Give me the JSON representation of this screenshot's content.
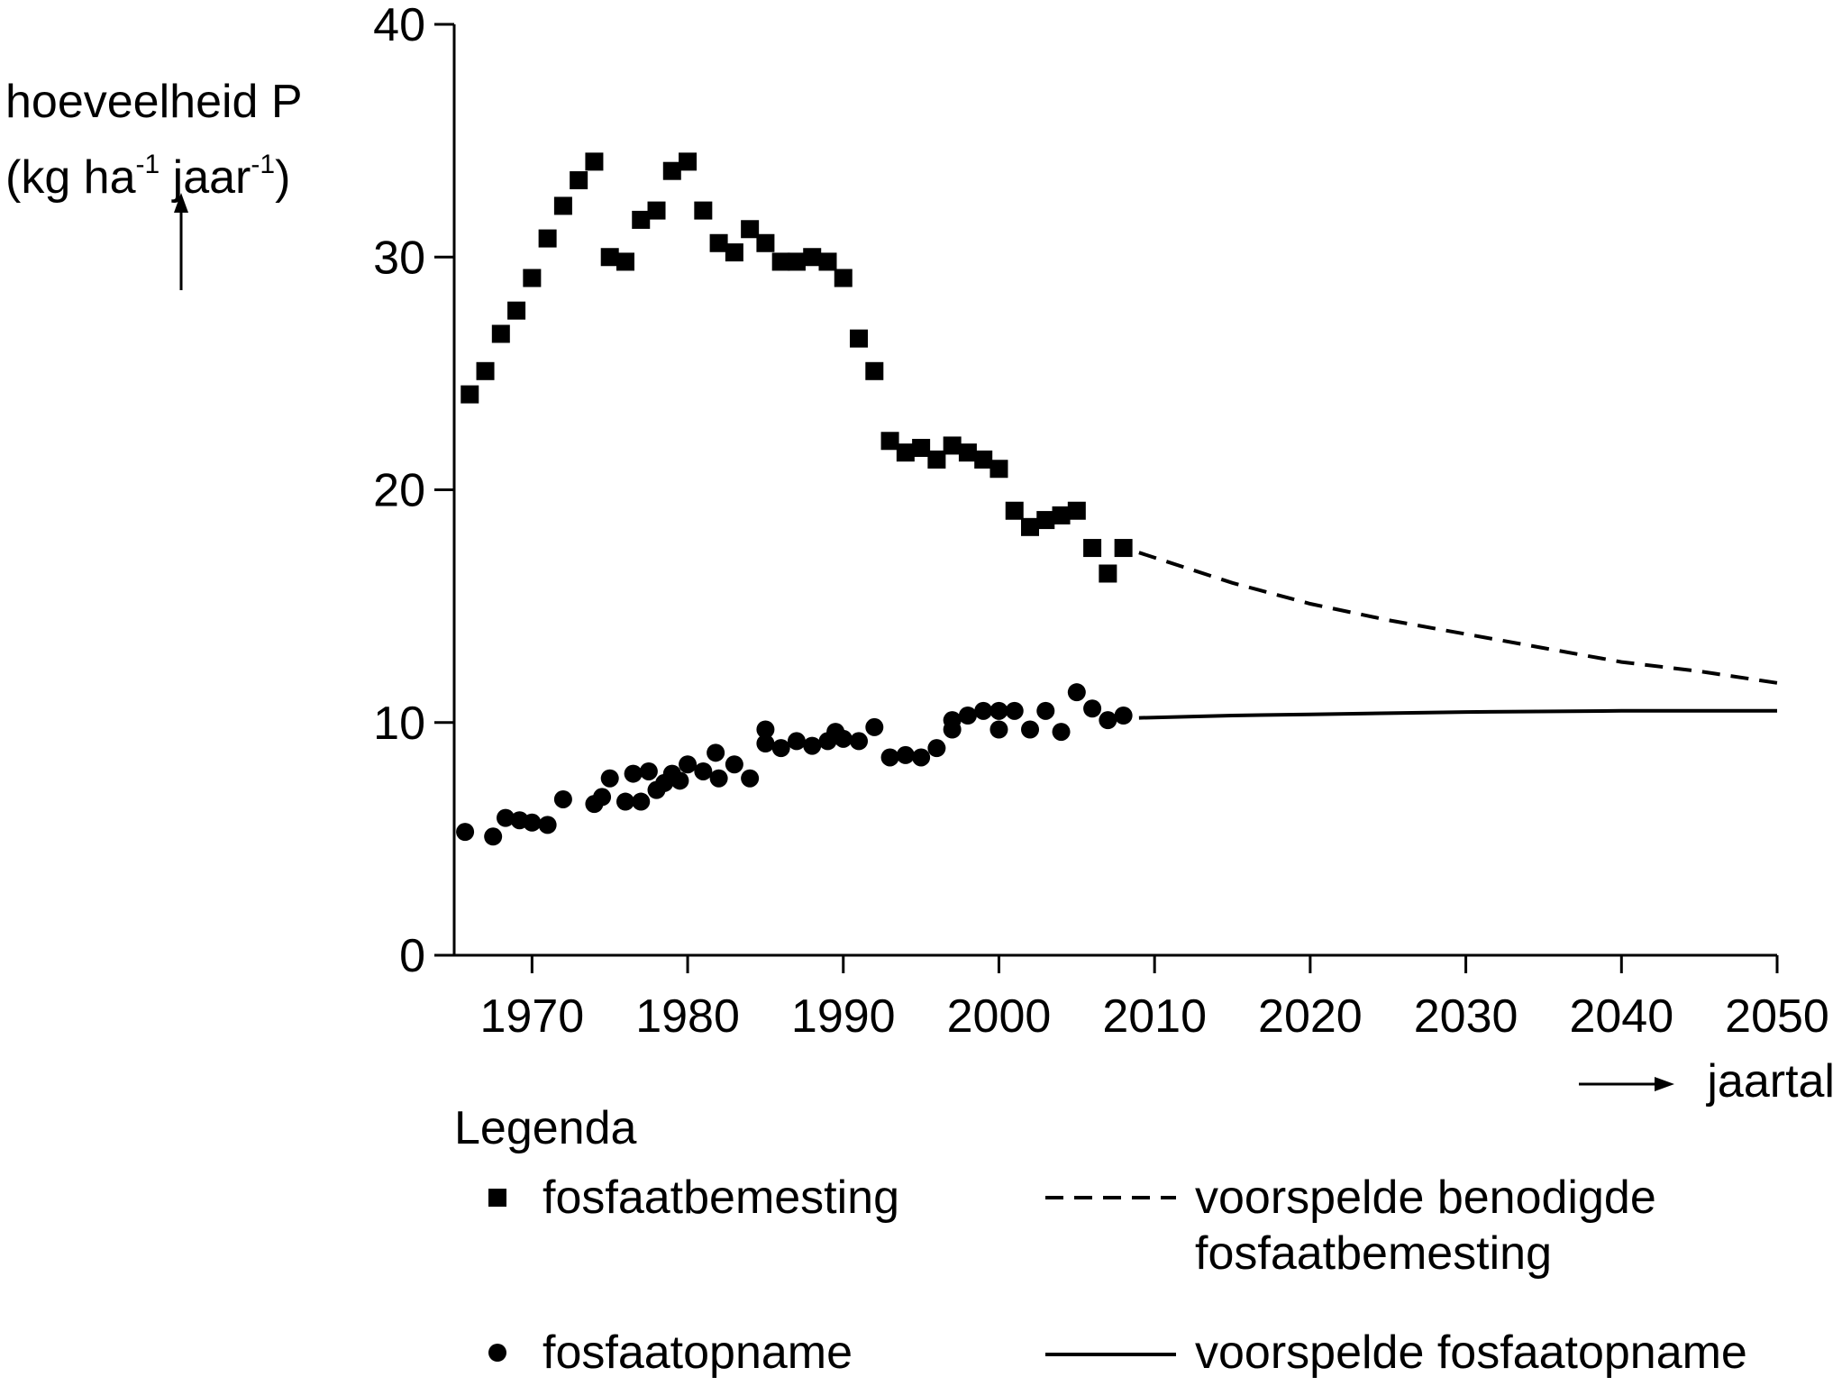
{
  "chart_data": {
    "type": "scatter",
    "title": "",
    "ylabel": {
      "line1": "hoeveelheid P",
      "line2_pre": "(kg ha",
      "line2_sup1": "-1",
      "line2_mid": " jaar",
      "line2_sup2": "-1",
      "line2_post": ")"
    },
    "xlabel": "jaartal",
    "xlim": [
      1965,
      2050
    ],
    "ylim": [
      0,
      40
    ],
    "xticks": [
      1970,
      1980,
      1990,
      2000,
      2010,
      2020,
      2030,
      2040,
      2050
    ],
    "yticks": [
      0,
      10,
      20,
      30,
      40
    ],
    "series": [
      {
        "name": "fosfaatbemesting",
        "marker": "square",
        "points": [
          [
            1966,
            24.1
          ],
          [
            1967,
            25.1
          ],
          [
            1968,
            26.7
          ],
          [
            1969,
            27.7
          ],
          [
            1970,
            29.1
          ],
          [
            1971,
            30.8
          ],
          [
            1972,
            32.2
          ],
          [
            1973,
            33.3
          ],
          [
            1974,
            34.1
          ],
          [
            1975,
            30.0
          ],
          [
            1976,
            29.8
          ],
          [
            1977,
            31.6
          ],
          [
            1978,
            32.0
          ],
          [
            1979,
            33.7
          ],
          [
            1980,
            34.1
          ],
          [
            1981,
            32.0
          ],
          [
            1982,
            30.6
          ],
          [
            1983,
            30.2
          ],
          [
            1984,
            31.2
          ],
          [
            1985,
            30.6
          ],
          [
            1986,
            29.8
          ],
          [
            1987,
            29.8
          ],
          [
            1988,
            30.0
          ],
          [
            1989,
            29.8
          ],
          [
            1990,
            29.1
          ],
          [
            1991,
            26.5
          ],
          [
            1992,
            25.1
          ],
          [
            1993,
            22.1
          ],
          [
            1994,
            21.6
          ],
          [
            1995,
            21.8
          ],
          [
            1996,
            21.3
          ],
          [
            1997,
            21.9
          ],
          [
            1998,
            21.6
          ],
          [
            1999,
            21.3
          ],
          [
            2000,
            20.9
          ],
          [
            2001,
            19.1
          ],
          [
            2002,
            18.4
          ],
          [
            2003,
            18.7
          ],
          [
            2004,
            18.9
          ],
          [
            2005,
            19.1
          ],
          [
            2006,
            17.5
          ],
          [
            2007,
            16.4
          ],
          [
            2008,
            17.5
          ]
        ]
      },
      {
        "name": "fosfaatopname",
        "marker": "circle",
        "points": [
          [
            1965.7,
            5.3
          ],
          [
            1967.5,
            5.1
          ],
          [
            1968.3,
            5.9
          ],
          [
            1969.2,
            5.8
          ],
          [
            1970,
            5.7
          ],
          [
            1971,
            5.6
          ],
          [
            1972,
            6.7
          ],
          [
            1974,
            6.5
          ],
          [
            1974.5,
            6.8
          ],
          [
            1975,
            7.6
          ],
          [
            1976,
            6.6
          ],
          [
            1976.5,
            7.8
          ],
          [
            1977,
            6.6
          ],
          [
            1977.5,
            7.9
          ],
          [
            1978,
            7.1
          ],
          [
            1978.5,
            7.4
          ],
          [
            1979,
            7.8
          ],
          [
            1979.5,
            7.5
          ],
          [
            1980,
            8.2
          ],
          [
            1981,
            7.9
          ],
          [
            1981.8,
            8.7
          ],
          [
            1982,
            7.6
          ],
          [
            1983,
            8.2
          ],
          [
            1984,
            7.6
          ],
          [
            1985,
            9.1
          ],
          [
            1985,
            9.7
          ],
          [
            1986,
            8.9
          ],
          [
            1987,
            9.2
          ],
          [
            1988,
            9.0
          ],
          [
            1989,
            9.2
          ],
          [
            1989.5,
            9.6
          ],
          [
            1990,
            9.3
          ],
          [
            1991,
            9.2
          ],
          [
            1992,
            9.8
          ],
          [
            1993,
            8.5
          ],
          [
            1994,
            8.6
          ],
          [
            1995,
            8.5
          ],
          [
            1996,
            8.9
          ],
          [
            1997,
            9.7
          ],
          [
            1997,
            10.1
          ],
          [
            1998,
            10.3
          ],
          [
            1999,
            10.5
          ],
          [
            2000,
            9.7
          ],
          [
            2000,
            10.5
          ],
          [
            2001,
            10.5
          ],
          [
            2002,
            9.7
          ],
          [
            2003,
            10.5
          ],
          [
            2004,
            9.6
          ],
          [
            2005,
            11.3
          ],
          [
            2006,
            10.6
          ],
          [
            2007,
            10.1
          ],
          [
            2008,
            10.3
          ]
        ]
      },
      {
        "name": "voorspelde benodigde fosfaatbemesting",
        "line": "dashed",
        "points": [
          [
            2009,
            17.3
          ],
          [
            2015,
            16.0
          ],
          [
            2020,
            15.1
          ],
          [
            2025,
            14.4
          ],
          [
            2030,
            13.8
          ],
          [
            2035,
            13.2
          ],
          [
            2040,
            12.6
          ],
          [
            2045,
            12.2
          ],
          [
            2050,
            11.7
          ]
        ]
      },
      {
        "name": "voorspelde fosfaatopname",
        "line": "solid",
        "points": [
          [
            2009,
            10.2
          ],
          [
            2015,
            10.3
          ],
          [
            2020,
            10.35
          ],
          [
            2030,
            10.45
          ],
          [
            2040,
            10.5
          ],
          [
            2050,
            10.5
          ]
        ]
      }
    ]
  },
  "legend": {
    "title": "Legenda",
    "square_label": "fosfaatbemesting",
    "circle_label": "fosfaatopname",
    "dashed_label_line1": "voorspelde benodigde",
    "dashed_label_line2": "fosfaatbemesting",
    "solid_label": "voorspelde fosfaatopname"
  }
}
